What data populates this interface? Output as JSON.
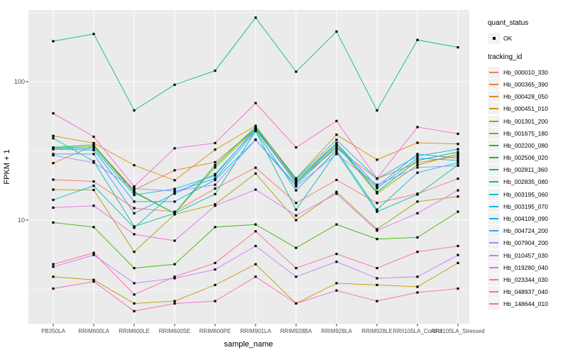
{
  "figure": {
    "background": "#FFFFFF",
    "panel_background": "#EBEBEB",
    "grid_color": "#FFFFFF",
    "tick_text_color": "#4D4D4D",
    "axis_title_color": "#000000",
    "marker_color": "#000000",
    "legend_key_background": "#F2F2F2"
  },
  "axes": {
    "x_title": "sample_name",
    "y_title": "FPKM + 1"
  },
  "legend": {
    "quant_status_title": "quant_status",
    "quant_status_value": "OK",
    "tracking_id_title": "tracking_id"
  },
  "chart_data": {
    "type": "line",
    "title": "",
    "xlabel": "sample_name",
    "ylabel": "FPKM + 1",
    "y_scale": "log10",
    "y_domain": [
      1.8,
      330
    ],
    "y_ticks": [
      100,
      10
    ],
    "y_minor_ticks": [
      3.162,
      31.623,
      316.228
    ],
    "grid": true,
    "legend_position": "right",
    "point_shape": "filled-black-square",
    "categories": [
      "PB350LA",
      "RRIM600LA",
      "RRIM600LE",
      "RRIM600SE",
      "RRIM600PE",
      "RRIM901LA",
      "RRIM928BA",
      "RRIM928LA",
      "RRIM928LE",
      "RRII105LA_Control",
      "RRII105LA_Stressed"
    ],
    "quant_status": "OK",
    "series": [
      {
        "name": "Hb_000010_330",
        "color": "#F8766D",
        "values": [
          19.6,
          19.0,
          12.2,
          11.5,
          16.9,
          23.9,
          13.3,
          19.5,
          13.3,
          15.5,
          19.9
        ]
      },
      {
        "name": "Hb_000365_390",
        "color": "#EA8331",
        "values": [
          25.8,
          34.5,
          16.5,
          22.9,
          26.2,
          45.5,
          19.0,
          33.0,
          19.9,
          26.0,
          29.0
        ]
      },
      {
        "name": "Hb_000428_050",
        "color": "#D89000",
        "values": [
          40.6,
          36.0,
          24.9,
          19.4,
          32.3,
          48.0,
          20.0,
          41.4,
          27.3,
          36.2,
          35.5
        ]
      },
      {
        "name": "Hb_000451_010",
        "color": "#C09B00",
        "values": [
          3.9,
          3.7,
          2.5,
          2.6,
          3.4,
          4.8,
          2.5,
          3.5,
          3.4,
          3.3,
          4.9
        ]
      },
      {
        "name": "Hb_001301_200",
        "color": "#A3A500",
        "values": [
          16.6,
          16.5,
          5.9,
          11.0,
          13.0,
          21.7,
          10.0,
          16.0,
          8.6,
          13.6,
          14.8
        ]
      },
      {
        "name": "Hb_001675_180",
        "color": "#7CAE00",
        "values": [
          33.0,
          34.0,
          15.8,
          11.2,
          24.0,
          46.0,
          18.5,
          35.0,
          15.6,
          25.0,
          30.0
        ]
      },
      {
        "name": "Hb_002200_080",
        "color": "#39B600",
        "values": [
          9.6,
          8.9,
          4.5,
          4.8,
          8.9,
          9.3,
          6.3,
          9.3,
          7.3,
          7.5,
          11.5
        ]
      },
      {
        "name": "Hb_002506_020",
        "color": "#00BB4E",
        "values": [
          33.5,
          35.0,
          16.0,
          11.2,
          25.0,
          47.0,
          19.5,
          36.0,
          16.0,
          27.0,
          31.0
        ]
      },
      {
        "name": "Hb_002811_360",
        "color": "#00BF7D",
        "values": [
          196,
          221,
          62,
          95,
          120,
          290,
          118,
          230,
          62,
          200,
          177
        ]
      },
      {
        "name": "Hb_002835_080",
        "color": "#00C1A3",
        "values": [
          39.0,
          26.6,
          9.0,
          11.2,
          15.4,
          44.0,
          11.9,
          31.0,
          11.5,
          15.3,
          25.0
        ]
      },
      {
        "name": "Hb_003195_060",
        "color": "#00BFC4",
        "values": [
          14.0,
          17.7,
          8.8,
          16.0,
          20.0,
          44.0,
          16.4,
          32.0,
          11.9,
          22.0,
          26.0
        ]
      },
      {
        "name": "Hb_003195_070",
        "color": "#00BAE0",
        "values": [
          33.0,
          33.0,
          15.2,
          16.8,
          21.0,
          46.0,
          20.0,
          38.0,
          19.9,
          29.0,
          32.5
        ]
      },
      {
        "name": "Hb_004109_090",
        "color": "#00B0F6",
        "values": [
          32.5,
          32.0,
          13.6,
          13.6,
          19.5,
          38.1,
          18.0,
          34.0,
          17.0,
          28.0,
          27.0
        ]
      },
      {
        "name": "Hb_004724_200",
        "color": "#35A2FF",
        "values": [
          30.0,
          30.0,
          11.2,
          15.5,
          21.5,
          45.0,
          18.8,
          36.0,
          17.5,
          30.0,
          28.0
        ]
      },
      {
        "name": "Hb_007904_200",
        "color": "#9590FF",
        "values": [
          29.4,
          26.0,
          16.9,
          16.2,
          18.0,
          38.0,
          17.5,
          30.0,
          18.0,
          24.0,
          24.7
        ]
      },
      {
        "name": "Hb_010457_030",
        "color": "#C77CFF",
        "values": [
          4.6,
          5.6,
          3.5,
          3.8,
          4.4,
          6.5,
          3.9,
          5.0,
          3.8,
          3.9,
          5.6
        ]
      },
      {
        "name": "Hb_019280_040",
        "color": "#E76BF3",
        "values": [
          12.3,
          12.7,
          7.9,
          7.1,
          12.7,
          16.6,
          10.8,
          15.5,
          8.4,
          11.2,
          16.4
        ]
      },
      {
        "name": "Hb_023344_030",
        "color": "#FA62DB",
        "values": [
          59.0,
          40.0,
          17.5,
          33.0,
          36.0,
          70.0,
          33.5,
          52.0,
          20.0,
          47.0,
          42.0
        ]
      },
      {
        "name": "Hb_048937_040",
        "color": "#FF62BC",
        "values": [
          3.2,
          3.6,
          2.2,
          2.5,
          2.6,
          3.9,
          2.5,
          3.1,
          2.6,
          3.0,
          3.2
        ]
      },
      {
        "name": "Hb_148644_010",
        "color": "#FF6A98",
        "values": [
          4.8,
          5.8,
          2.9,
          3.9,
          4.9,
          8.3,
          4.5,
          5.7,
          4.5,
          5.9,
          6.5
        ]
      }
    ]
  }
}
